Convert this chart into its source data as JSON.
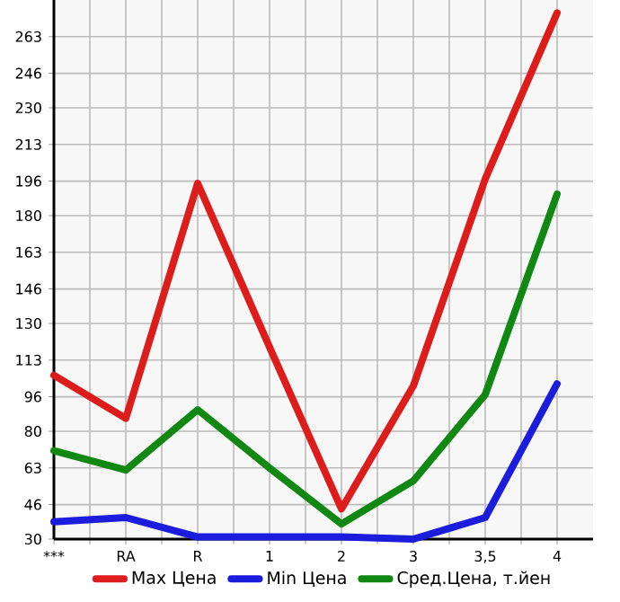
{
  "chart_data": {
    "type": "line",
    "categories": [
      "***",
      "RA",
      "R",
      "1",
      "2",
      "3",
      "3,5",
      "4"
    ],
    "series": [
      {
        "name": "Max Цена",
        "color": "#dd1c1c",
        "values": [
          106,
          86,
          195,
          119,
          44,
          101,
          197,
          274
        ]
      },
      {
        "name": "Min Цена",
        "color": "#1c1cdd",
        "values": [
          38,
          40,
          31,
          31,
          31,
          30,
          40,
          102
        ]
      },
      {
        "name": "Сред.Цена, т.йен",
        "color": "#118811",
        "values": [
          71,
          62,
          90,
          63,
          37,
          57,
          97,
          190
        ]
      }
    ],
    "ylim": [
      30,
      280
    ],
    "yticks": [
      30,
      46,
      63,
      80,
      96,
      113,
      130,
      146,
      163,
      180,
      196,
      213,
      230,
      246,
      263
    ],
    "grid": true,
    "legend": "bottom",
    "marker": "none",
    "line_style": "solid"
  }
}
